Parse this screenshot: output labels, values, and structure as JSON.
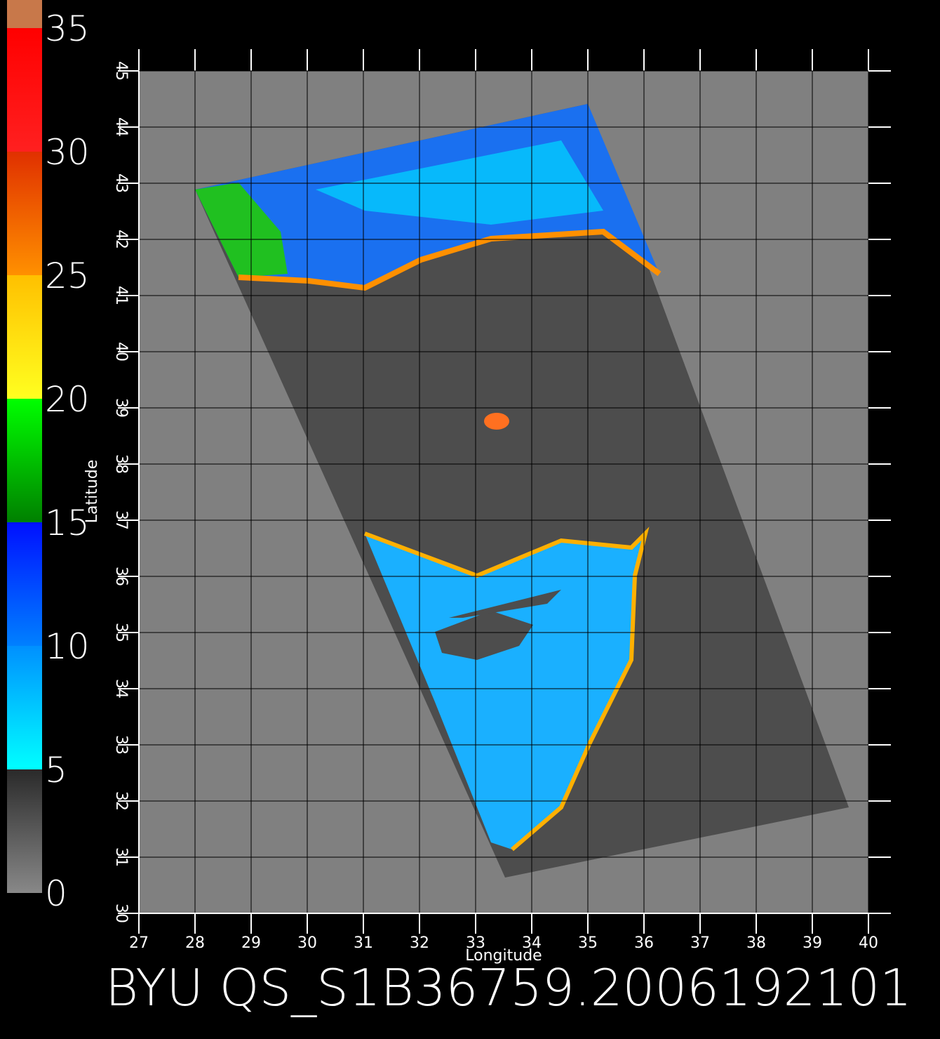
{
  "title": "BYU QS_S1B36759.2006192101",
  "colorbar": {
    "ticks": [
      0,
      5,
      10,
      15,
      20,
      25,
      30,
      35
    ],
    "colors": [
      [
        "#888888",
        "#2a2a2a"
      ],
      [
        "#00ffff",
        "#0090ff"
      ],
      [
        "#0080ff",
        "#0010ff"
      ],
      [
        "#008000",
        "#00ff00"
      ],
      [
        "#ffff20",
        "#ffc000"
      ],
      [
        "#ff9000",
        "#e03000"
      ],
      [
        "#ff2020",
        "#ff0000"
      ]
    ],
    "over_color": "#c8784a"
  },
  "map": {
    "xlabel": "Longitude",
    "ylabel": "Latitude",
    "xlim": [
      27,
      40
    ],
    "ylim": [
      30,
      45
    ],
    "xticks": [
      27,
      28,
      29,
      30,
      31,
      32,
      33,
      34,
      35,
      36,
      37,
      38,
      39,
      40
    ],
    "yticks": [
      30,
      31,
      32,
      33,
      34,
      35,
      36,
      37,
      38,
      39,
      40,
      41,
      42,
      43,
      44,
      45
    ],
    "grid": true
  }
}
